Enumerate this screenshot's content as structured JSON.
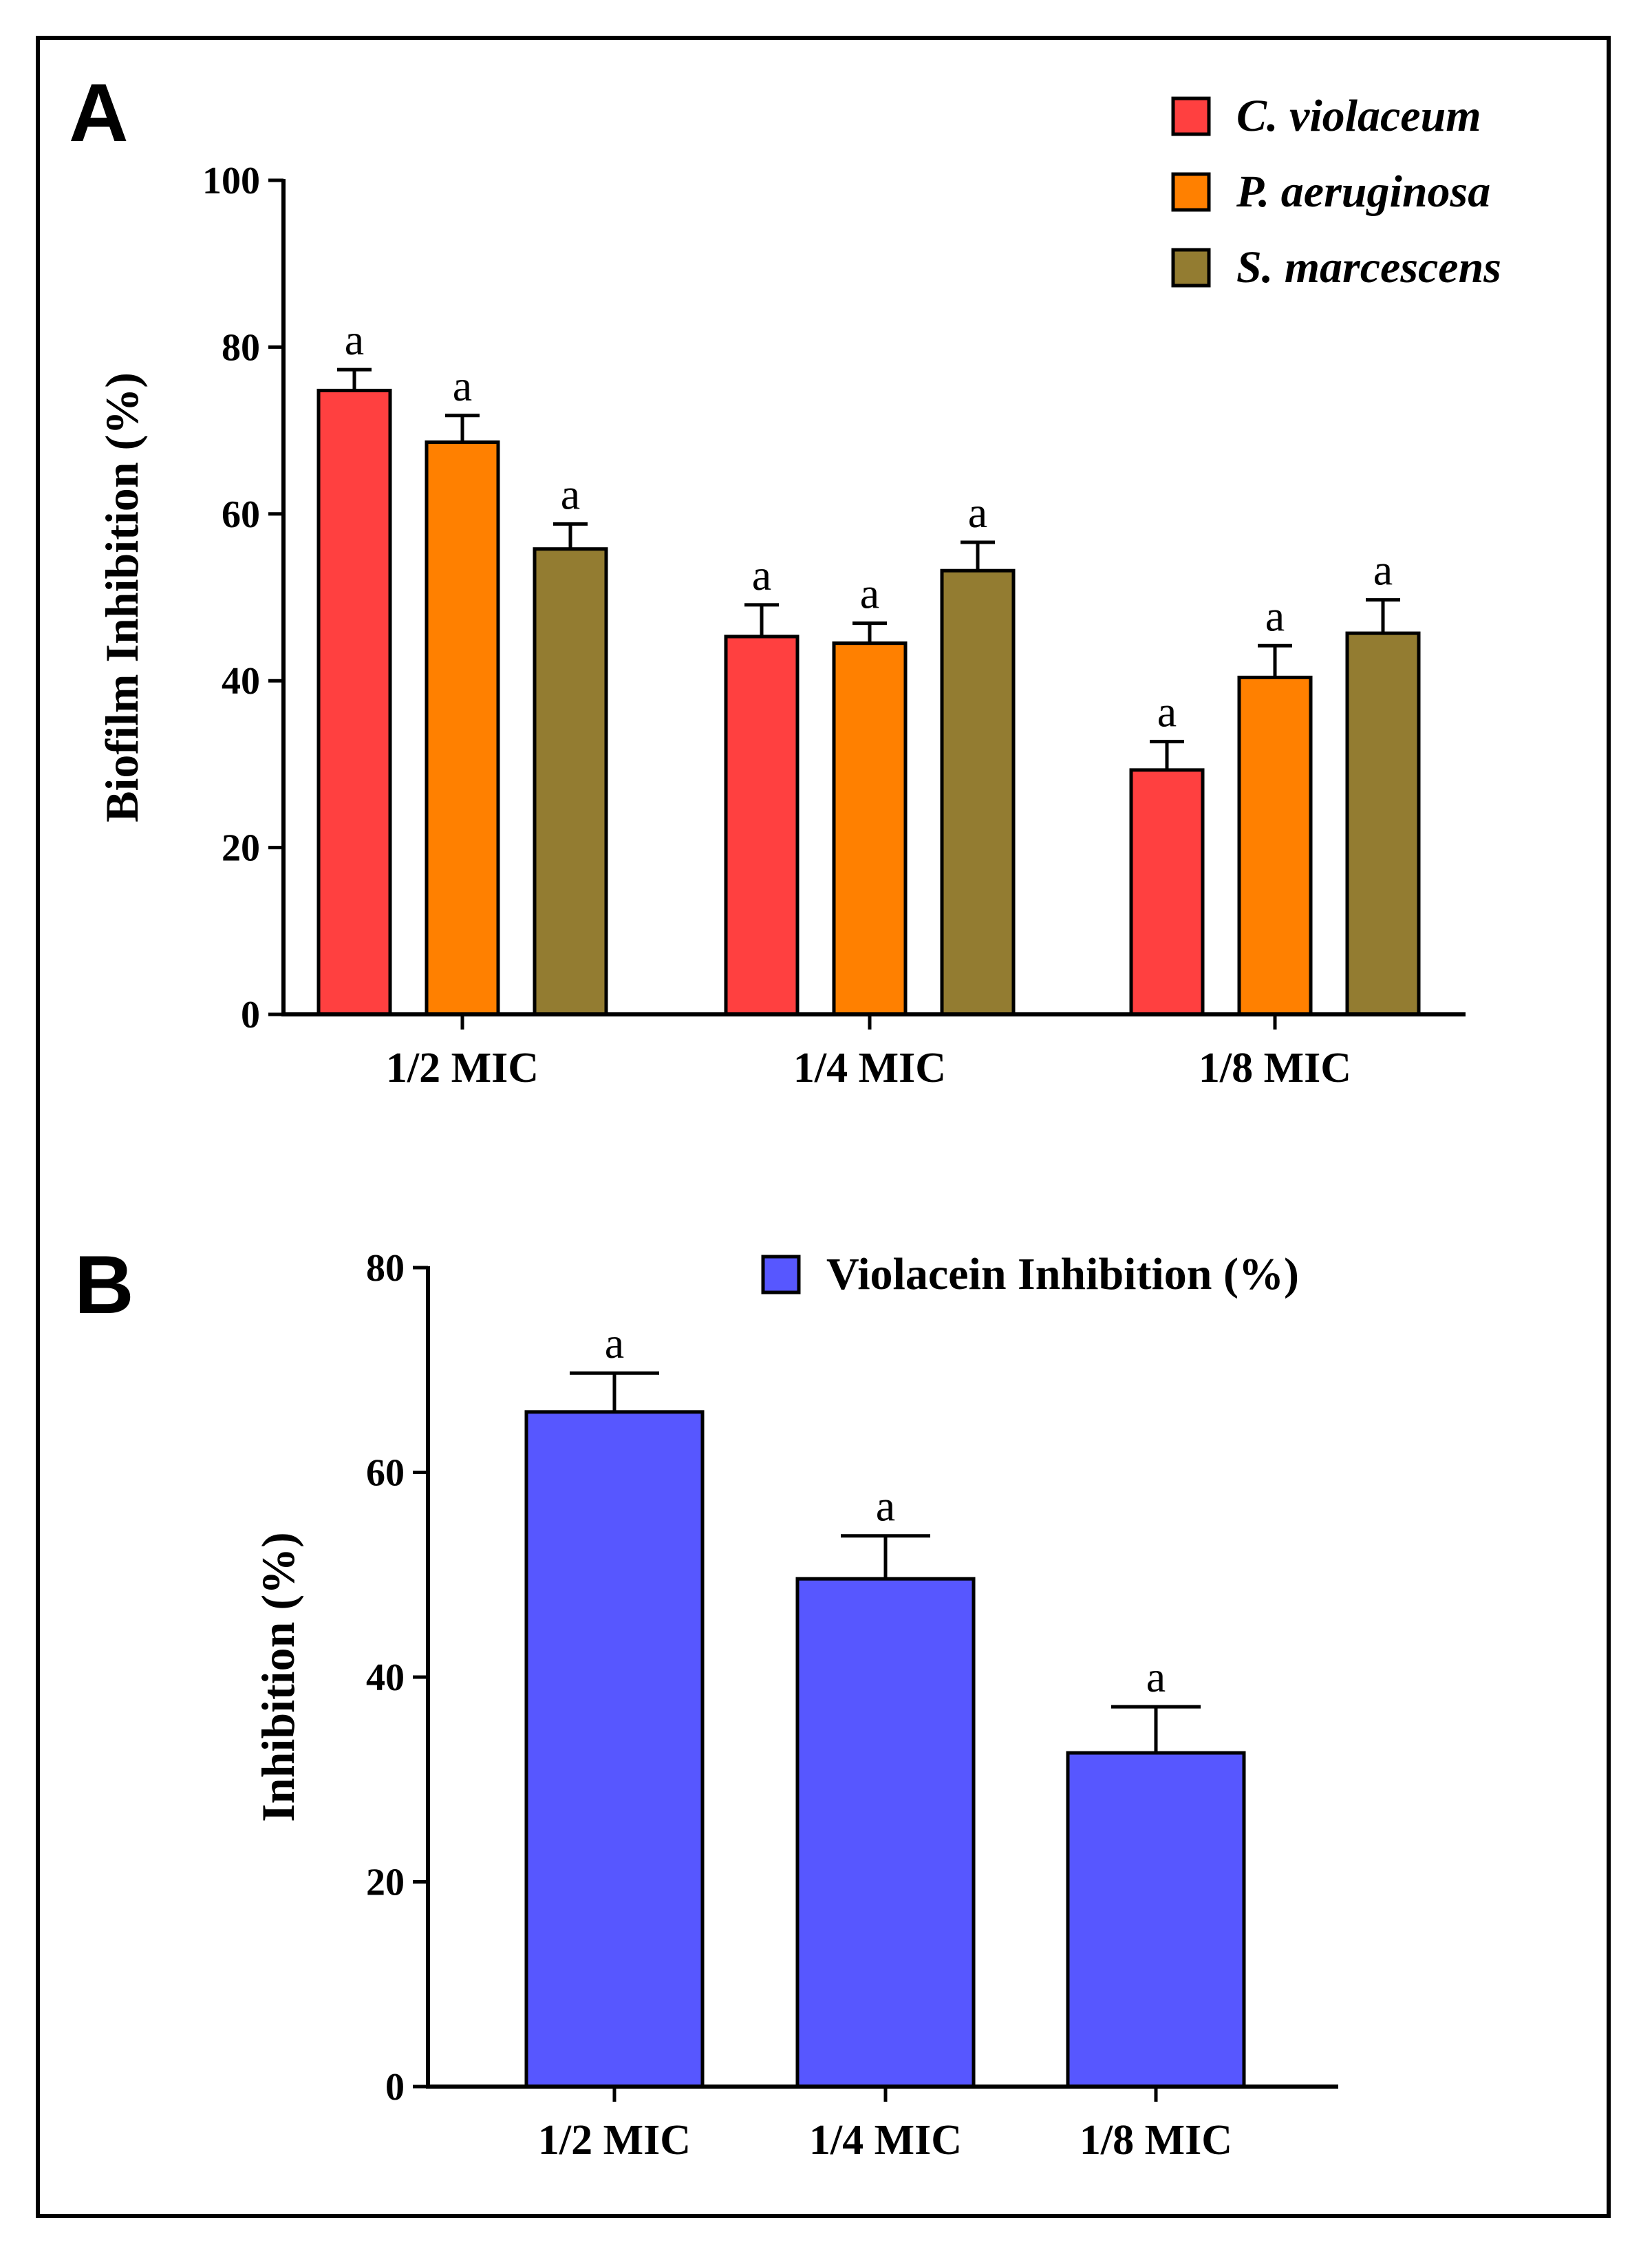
{
  "chart_data": [
    {
      "panel": "A",
      "type": "bar",
      "ylabel": "Biofilm Inhibition (%)",
      "xlabel": "",
      "ylim": [
        0,
        100
      ],
      "yticks": [
        "0",
        "20",
        "40",
        "60",
        "80",
        "100"
      ],
      "categories": [
        "1/2 MIC",
        "1/4 MIC",
        "1/8 MIC"
      ],
      "legend_position": "top-right",
      "series": [
        {
          "name": "C. violaceum",
          "color": "#ff4040",
          "values": [
            74.8,
            45.3,
            29.3
          ],
          "errors": [
            2.5,
            3.8,
            3.4
          ],
          "labels": [
            "a",
            "a",
            "a"
          ]
        },
        {
          "name": "P. aeruginosa",
          "color": "#ff8000",
          "values": [
            68.6,
            44.5,
            40.4
          ],
          "errors": [
            3.2,
            2.4,
            3.8
          ],
          "labels": [
            "a",
            "a",
            "a"
          ]
        },
        {
          "name": "S. marcescens",
          "color": "#937c31",
          "values": [
            55.8,
            53.2,
            45.7
          ],
          "errors": [
            3.0,
            3.4,
            4.0
          ],
          "labels": [
            "a",
            "a",
            "a"
          ]
        }
      ]
    },
    {
      "panel": "B",
      "type": "bar",
      "ylabel": "Inhibition (%)",
      "xlabel": "",
      "ylim": [
        0,
        80
      ],
      "yticks": [
        "0",
        "20",
        "40",
        "60",
        "80"
      ],
      "categories": [
        "1/2 MIC",
        "1/4 MIC",
        "1/8 MIC"
      ],
      "legend_position": "top",
      "series": [
        {
          "name": "Violacein Inhibition (%)",
          "color": "#5757ff",
          "values": [
            65.9,
            49.6,
            32.6
          ],
          "errors": [
            3.8,
            4.2,
            4.5
          ],
          "labels": [
            "a",
            "a",
            "a"
          ]
        }
      ]
    }
  ]
}
